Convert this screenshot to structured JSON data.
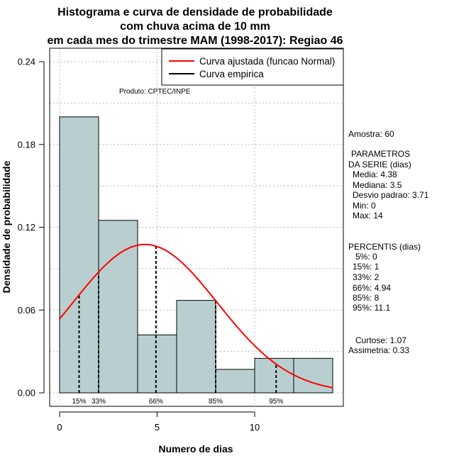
{
  "title_lines": [
    "Histograma e curva de densidade de probabilidade",
    "com chuva acima de 10 mm",
    "em cada mes do trimestre MAM (1998-2017): Regiao 46"
  ],
  "product_label": "Produto: CPTEC/INPE",
  "legend": [
    {
      "label": "Curva ajustada (funcao Normal)",
      "color": "#ff0000"
    },
    {
      "label": "Curva empirica",
      "color": "#000000"
    }
  ],
  "stats_text": {
    "amostra": "Amostra: 60",
    "params_header_1": "PARAMETROS",
    "params_header_2": "DA SERIE (dias)",
    "media": "Media: 4.38",
    "mediana": "Mediana: 3.5",
    "desvio": "Desvio padrao: 3.71",
    "min": "Min: 0",
    "max": "Max: 14",
    "percentis_header": "PERCENTIS (dias)",
    "p5": "5%: 0",
    "p15": "15%: 1",
    "p33": "33%: 2",
    "p66": "66%: 4.94",
    "p85": "85%: 8",
    "p95": "95%: 11.1",
    "curtose": "Curtose: 1.07",
    "assimetria": "Assimetria: 0.33"
  },
  "chart_data": {
    "type": "bar",
    "title": "Histograma e curva de densidade de probabilidade com chuva acima de 10 mm em cada mes do trimestre MAM (1998-2017): Regiao 46",
    "xlabel": "Numero de dias",
    "ylabel": "Densidade de probabilidade",
    "xlim": [
      -0.5,
      14.5
    ],
    "ylim": [
      0,
      0.24
    ],
    "xticks": [
      0,
      5,
      10
    ],
    "yticks": [
      0.0,
      0.06,
      0.12,
      0.18,
      0.24
    ],
    "ytick_labels": [
      "0.00",
      "0.06",
      "0.12",
      "0.18",
      "0.24"
    ],
    "grid": true,
    "legend_position": "top-right",
    "bin_edges": [
      0,
      2,
      4,
      6,
      8,
      10,
      12,
      14
    ],
    "values": [
      0.2,
      0.125,
      0.042,
      0.067,
      0.017,
      0.025,
      0.025
    ],
    "bar_color": "#b9cfcf",
    "normal_curve": {
      "mean": 4.38,
      "sd": 3.71,
      "x_range": [
        0,
        14
      ],
      "color": "#ff0000"
    },
    "percentile_lines": [
      {
        "label": "15%",
        "x": 1
      },
      {
        "label": "33%",
        "x": 2
      },
      {
        "label": "66%",
        "x": 4.94
      },
      {
        "label": "85%",
        "x": 8
      },
      {
        "label": "95%",
        "x": 11.1
      }
    ]
  }
}
